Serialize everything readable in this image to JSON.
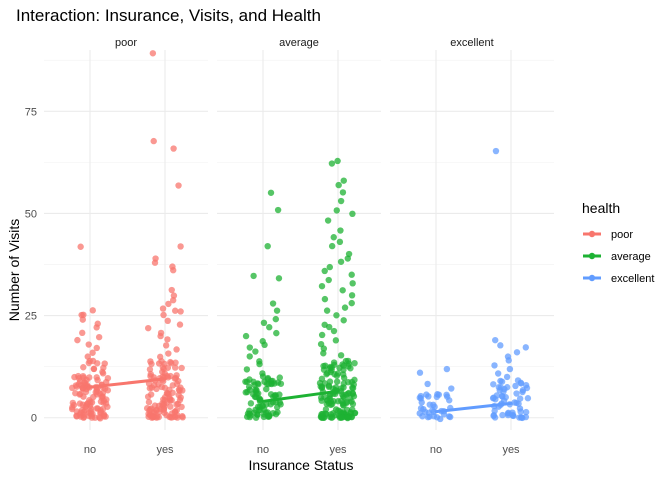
{
  "chart_data": {
    "type": "scatter",
    "title": "Interaction: Insurance, Visits, and Health",
    "xlabel": "Insurance Status",
    "ylabel": "Number of Visits",
    "categories": [
      "no",
      "yes"
    ],
    "facets": [
      "poor",
      "average",
      "excellent"
    ],
    "y_ticks": [
      0,
      25,
      50,
      75
    ],
    "ylim": [
      -3,
      90
    ],
    "grid": true,
    "legend": {
      "title": "health",
      "placement": "right",
      "entries": [
        {
          "name": "poor",
          "color": "#F8766D"
        },
        {
          "name": "average",
          "color": "#1DB233"
        },
        {
          "name": "excellent",
          "color": "#619CFF"
        }
      ]
    },
    "series": [
      {
        "name": "poor",
        "color": "#F8766D",
        "mean_line": {
          "no": 7.5,
          "yes": 9.5
        },
        "points": {
          "no": [
            42,
            26,
            25,
            25,
            24,
            23,
            22,
            21,
            20,
            19,
            18,
            17,
            16,
            15,
            14,
            13,
            12,
            11,
            10,
            9,
            9,
            8,
            8,
            7,
            7,
            6,
            6,
            5,
            5,
            4,
            4,
            3,
            3,
            2,
            2,
            1,
            1,
            0,
            0,
            0
          ],
          "yes": [
            89,
            68,
            66,
            57,
            42,
            39,
            38,
            37,
            36,
            31,
            30,
            29,
            28,
            27,
            26,
            26,
            25,
            24,
            23,
            22,
            21,
            20,
            19,
            18,
            17,
            16,
            15,
            14,
            13,
            12,
            11,
            10,
            9,
            8,
            7,
            6,
            5,
            4,
            3,
            2,
            1,
            0,
            0,
            0
          ]
        }
      },
      {
        "name": "average",
        "color": "#1DB233",
        "mean_line": {
          "no": 4,
          "yes": 6.5
        },
        "points": {
          "no": [
            55,
            51,
            42,
            35,
            34,
            28,
            26,
            24,
            23,
            22,
            21,
            20,
            19,
            18,
            17,
            16,
            15,
            14,
            13,
            12,
            11,
            10,
            9,
            8,
            7,
            6,
            5,
            4,
            3,
            2,
            1,
            0
          ],
          "yes": [
            63,
            62,
            58,
            57,
            55,
            53,
            51,
            50,
            48,
            46,
            44,
            43,
            42,
            40,
            39,
            38,
            37,
            36,
            35,
            34,
            33,
            32,
            31,
            30,
            29,
            28,
            27,
            26,
            25,
            24,
            23,
            22,
            21,
            20,
            19,
            18,
            17,
            16,
            15,
            14,
            13,
            12,
            11,
            10,
            9,
            8,
            7,
            6,
            5,
            4,
            3,
            2,
            1,
            0
          ]
        }
      },
      {
        "name": "excellent",
        "color": "#619CFF",
        "mean_line": {
          "no": 1.5,
          "yes": 3.5
        },
        "points": {
          "no": [
            12,
            11,
            8,
            7,
            6,
            5,
            4,
            3,
            2,
            1,
            0,
            0
          ],
          "yes": [
            65,
            19,
            18,
            17,
            16,
            15,
            14,
            13,
            12,
            11,
            10,
            9,
            8,
            7,
            6,
            5,
            4,
            3,
            2,
            1,
            0
          ]
        }
      }
    ]
  }
}
